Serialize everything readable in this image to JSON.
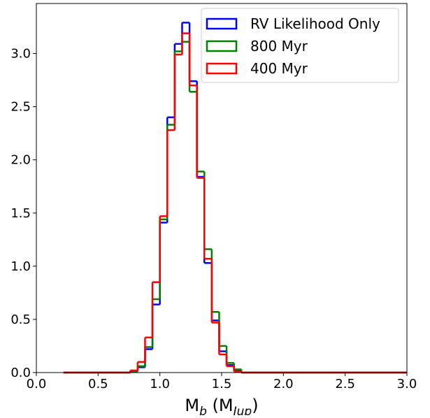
{
  "chart_data": {
    "type": "histogram",
    "xlabel": [
      "M",
      "b",
      " (M",
      "Jup",
      ")"
    ],
    "bins": [
      0.22,
      0.76,
      0.82,
      0.88,
      0.94,
      1.0,
      1.06,
      1.12,
      1.18,
      1.24,
      1.3,
      1.36,
      1.42,
      1.48,
      1.54,
      1.6,
      1.66,
      3.0
    ],
    "series": [
      {
        "name": "RV Likelihood Only",
        "color": "#0000ff",
        "values": [
          0,
          0.01,
          0.05,
          0.22,
          0.64,
          1.41,
          2.4,
          3.09,
          3.29,
          2.74,
          1.84,
          1.03,
          0.49,
          0.2,
          0.07,
          0.02,
          0
        ]
      },
      {
        "name": "800 Myr",
        "color": "#008000",
        "values": [
          0,
          0.01,
          0.06,
          0.24,
          0.69,
          1.44,
          2.33,
          3.02,
          3.11,
          2.64,
          1.89,
          1.16,
          0.57,
          0.25,
          0.09,
          0.03,
          0
        ]
      },
      {
        "name": "400 Myr",
        "color": "#ff0000",
        "values": [
          0,
          0.02,
          0.1,
          0.33,
          0.85,
          1.47,
          2.28,
          2.99,
          3.19,
          2.7,
          1.83,
          1.07,
          0.47,
          0.17,
          0.06,
          0.01,
          0
        ]
      }
    ],
    "xlim": [
      0,
      3.0
    ],
    "ylim": [
      0,
      3.47
    ],
    "xticks": [
      {
        "value": 0,
        "label": "0.0"
      },
      {
        "value": 0.5,
        "label": "0.5"
      },
      {
        "value": 1,
        "label": "1.0"
      },
      {
        "value": 1.5,
        "label": "1.5"
      },
      {
        "value": 2,
        "label": "2.0"
      },
      {
        "value": 2.5,
        "label": "2.5"
      },
      {
        "value": 3,
        "label": "3.0"
      }
    ],
    "yticks": [
      {
        "value": 0,
        "label": "0.0"
      },
      {
        "value": 0.5,
        "label": "0.5"
      },
      {
        "value": 1,
        "label": "1.0"
      },
      {
        "value": 1.5,
        "label": "1.5"
      },
      {
        "value": 2,
        "label": "2.0"
      },
      {
        "value": 2.5,
        "label": "2.5"
      },
      {
        "value": 3,
        "label": "3.0"
      }
    ],
    "legend": "upper right"
  }
}
